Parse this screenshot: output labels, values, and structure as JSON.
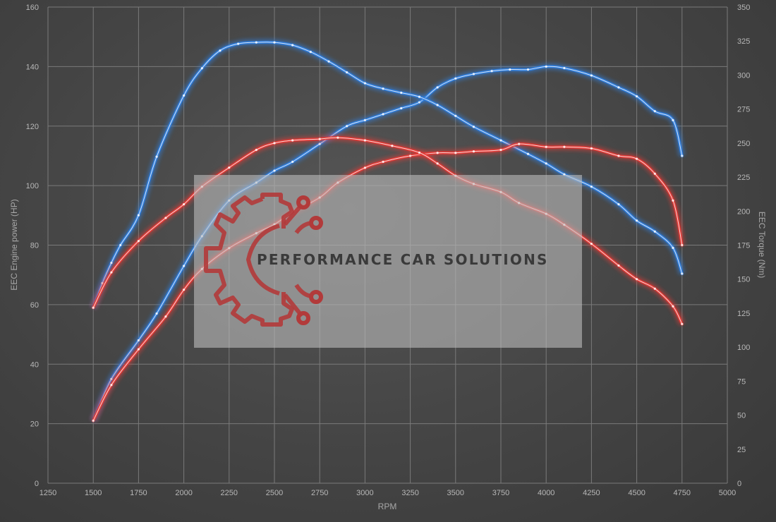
{
  "chart_data": {
    "type": "line",
    "title": "",
    "xlabel": "RPM",
    "ylabel_left": "EEC Engine power (HP)",
    "ylabel_right": "EEC Torque (Nm)",
    "xlim": [
      1250,
      5000
    ],
    "ylim_left": [
      0,
      160
    ],
    "ylim_right": [
      0,
      350
    ],
    "x_ticks": [
      1250,
      1500,
      1750,
      2000,
      2250,
      2500,
      2750,
      3000,
      3250,
      3500,
      3750,
      4000,
      4250,
      4500,
      4750,
      5000
    ],
    "y_left_ticks": [
      0,
      20,
      40,
      60,
      80,
      100,
      120,
      140,
      160
    ],
    "y_right_ticks": [
      0,
      25,
      50,
      75,
      100,
      125,
      150,
      175,
      200,
      225,
      250,
      275,
      300,
      325,
      350
    ],
    "grid": true,
    "legend": "none",
    "colors": {
      "stock": "#e53935",
      "tuned": "#2f7fe0",
      "trace": "#f4f4f4"
    },
    "series": [
      {
        "axis": "left",
        "group": "tuned",
        "x": [
          1500,
          1600,
          1750,
          1850,
          2000,
          2100,
          2250,
          2400,
          2500,
          2600,
          2750,
          2900,
          3000,
          3100,
          3200,
          3300,
          3400,
          3500,
          3600,
          3700,
          3800,
          3900,
          4000,
          4100,
          4250,
          4400,
          4500,
          4600,
          4700,
          4750
        ],
        "y": [
          21,
          35,
          48,
          57,
          73,
          83,
          95,
          101,
          105,
          108,
          114,
          120,
          122,
          124,
          126,
          128,
          133,
          136,
          137.5,
          138.5,
          139,
          139,
          140,
          139.5,
          137,
          133,
          130,
          125,
          122,
          110
        ]
      },
      {
        "axis": "right",
        "group": "tuned",
        "x": [
          1500,
          1550,
          1600,
          1650,
          1750,
          1850,
          2000,
          2100,
          2200,
          2300,
          2400,
          2500,
          2600,
          2700,
          2800,
          2900,
          3000,
          3100,
          3200,
          3300,
          3400,
          3500,
          3600,
          3750,
          3900,
          4000,
          4100,
          4250,
          4400,
          4500,
          4600,
          4700,
          4750
        ],
        "y": [
          129,
          147,
          162,
          175,
          197,
          240,
          285,
          305,
          318,
          323,
          324,
          324,
          322,
          317,
          310,
          302,
          294,
          290,
          287,
          284,
          278,
          270,
          262,
          252,
          242,
          235,
          227,
          218,
          205,
          193,
          185,
          173,
          154
        ]
      },
      {
        "axis": "left",
        "group": "stock",
        "x": [
          1500,
          1600,
          1750,
          1900,
          2000,
          2100,
          2250,
          2400,
          2500,
          2600,
          2750,
          2850,
          3000,
          3100,
          3250,
          3400,
          3500,
          3600,
          3750,
          3850,
          4000,
          4100,
          4250,
          4400,
          4500,
          4600,
          4700,
          4750
        ],
        "y": [
          21,
          33,
          45,
          56,
          65,
          72,
          79,
          84,
          87,
          91,
          96,
          101,
          106,
          108,
          110,
          111,
          111,
          111.5,
          112,
          114,
          113,
          113,
          112.5,
          110,
          109,
          104,
          95,
          80
        ]
      },
      {
        "axis": "right",
        "group": "stock",
        "x": [
          1500,
          1600,
          1750,
          1900,
          2000,
          2100,
          2250,
          2400,
          2500,
          2600,
          2750,
          2850,
          3000,
          3150,
          3300,
          3400,
          3500,
          3600,
          3750,
          3850,
          4000,
          4100,
          4250,
          4400,
          4500,
          4600,
          4700,
          4750
        ],
        "y": [
          129,
          155,
          178,
          195,
          205,
          218,
          232,
          245,
          250,
          252,
          253,
          254,
          252,
          248,
          243,
          235,
          226,
          220,
          214,
          206,
          198,
          190,
          176,
          160,
          150,
          143,
          130,
          117
        ]
      }
    ]
  },
  "watermark": {
    "text": "PERFORMANCE CAR SOLUTIONS",
    "icon": "gear-circuit-logo-icon"
  }
}
